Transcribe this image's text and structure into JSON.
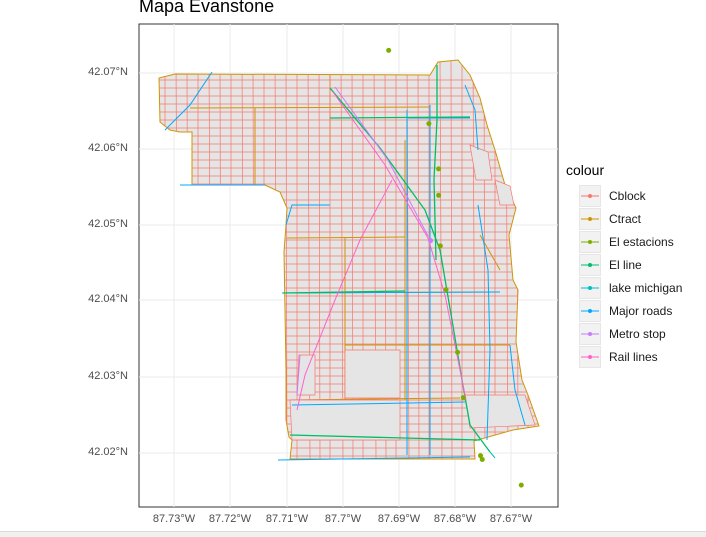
{
  "title": "Mapa Evanstone",
  "y_ticks": [
    "42.07°N",
    "42.06°N",
    "42.05°N",
    "42.04°N",
    "42.03°N",
    "42.02°N"
  ],
  "x_ticks": [
    "87.73°W",
    "87.72°W",
    "87.71°W",
    "87.7°W",
    "87.69°W",
    "87.68°W",
    "87.67°W"
  ],
  "legend": {
    "title": "colour",
    "items": [
      {
        "label": "Cblock",
        "color": "#F8766D"
      },
      {
        "label": "Ctract",
        "color": "#CD9600"
      },
      {
        "label": "El estacions",
        "color": "#7CAE00"
      },
      {
        "label": "El line",
        "color": "#00BE67"
      },
      {
        "label": "lake michigan",
        "color": "#00BFC4"
      },
      {
        "label": "Major roads",
        "color": "#00A9FF"
      },
      {
        "label": "Metro stop",
        "color": "#C77CFF"
      },
      {
        "label": "Rail lines",
        "color": "#FF61CC"
      }
    ]
  },
  "chart_data": {
    "type": "map",
    "xlim": [
      -87.736,
      -87.663
    ],
    "ylim": [
      42.013,
      42.077
    ],
    "stations": [
      [
        -87.6925,
        42.0735
      ],
      [
        -87.6855,
        42.0638
      ],
      [
        -87.6838,
        42.0578
      ],
      [
        -87.6838,
        42.0543
      ],
      [
        -87.6835,
        42.0476
      ],
      [
        -87.6825,
        42.0418
      ],
      [
        -87.6805,
        42.0335
      ],
      [
        -87.6795,
        42.0275
      ],
      [
        -87.6765,
        42.0198
      ],
      [
        -87.6762,
        42.0193
      ],
      [
        -87.6694,
        42.0159
      ]
    ],
    "metro_stops": [
      [
        -87.6852,
        42.0483
      ]
    ]
  }
}
